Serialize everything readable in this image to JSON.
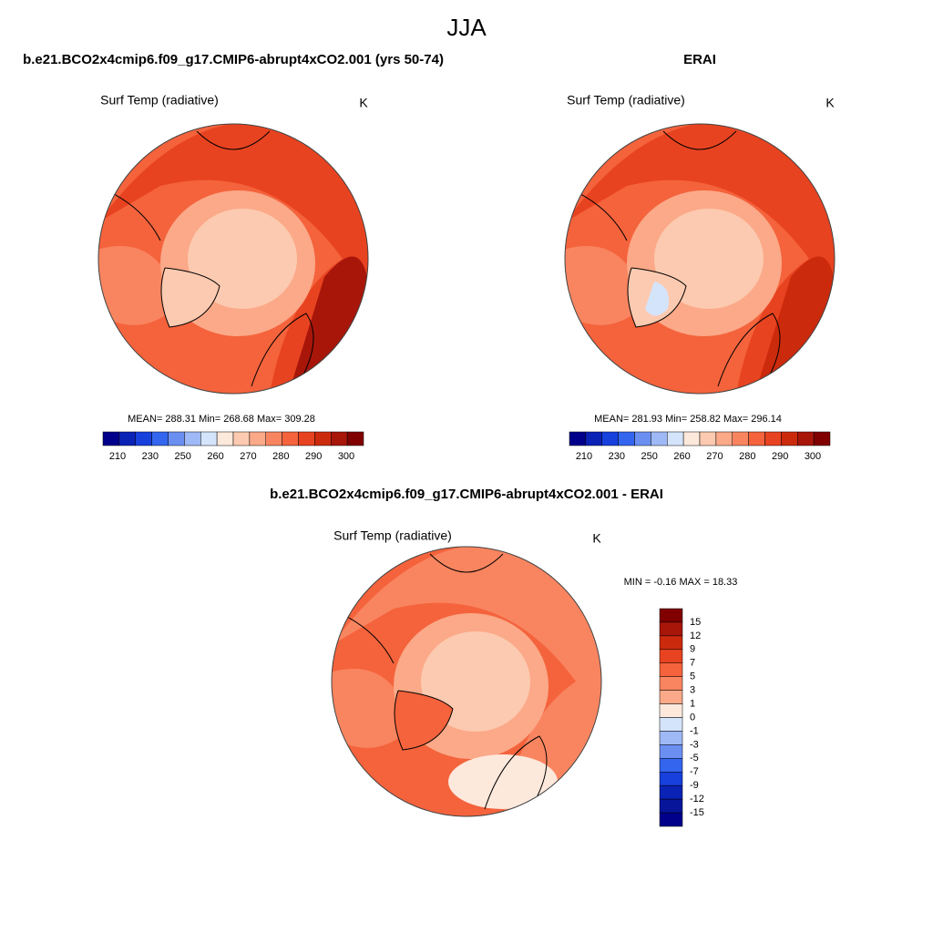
{
  "title": "JJA",
  "panels": [
    {
      "title": "b.e21.BCO2x4cmip6.f09_g17.CMIP6-abrupt4xCO2.001 (yrs 50-74)",
      "variable": "Surf Temp (radiative)",
      "units": "K",
      "stats": "MEAN= 288.31  Min= 268.68  Max= 309.28",
      "colorbar": {
        "labels": [
          "210",
          "230",
          "250",
          "260",
          "270",
          "280",
          "290",
          "300"
        ],
        "colors": [
          "#00008b",
          "#0a22b5",
          "#1740dc",
          "#3365ee",
          "#6b8ff1",
          "#9fb9f6",
          "#d4e4fb",
          "#fde8dc",
          "#fccab0",
          "#fba988",
          "#f98560",
          "#f4633c",
          "#e84320",
          "#cc2a0c",
          "#a8160a",
          "#800000"
        ]
      }
    },
    {
      "title": "ERAI",
      "variable": "Surf Temp (radiative)",
      "units": "K",
      "stats": "MEAN= 281.93  Min= 258.82  Max= 296.14",
      "colorbar": {
        "labels": [
          "210",
          "230",
          "250",
          "260",
          "270",
          "280",
          "290",
          "300"
        ],
        "colors": [
          "#00008b",
          "#0a22b5",
          "#1740dc",
          "#3365ee",
          "#6b8ff1",
          "#9fb9f6",
          "#d4e4fb",
          "#fde8dc",
          "#fccab0",
          "#fba988",
          "#f98560",
          "#f4633c",
          "#e84320",
          "#cc2a0c",
          "#a8160a",
          "#800000"
        ]
      }
    }
  ],
  "difference": {
    "title": "b.e21.BCO2x4cmip6.f09_g17.CMIP6-abrupt4xCO2.001 - ERAI",
    "variable": "Surf Temp (radiative)",
    "units": "K",
    "stats": "MIN =  -0.16 MAX =  18.33",
    "colorbar": {
      "labels": [
        "15",
        "12",
        "9",
        "7",
        "5",
        "3",
        "1",
        "0",
        "-1",
        "-3",
        "-5",
        "-7",
        "-9",
        "-12",
        "-15"
      ],
      "colors": [
        "#800000",
        "#a8160a",
        "#cc2a0c",
        "#e84320",
        "#f4633c",
        "#f98560",
        "#fba988",
        "#fde8dc",
        "#d4e4fb",
        "#9fb9f6",
        "#6b8ff1",
        "#3365ee",
        "#1740dc",
        "#0a22b5",
        "#06159a",
        "#00008b"
      ]
    }
  }
}
